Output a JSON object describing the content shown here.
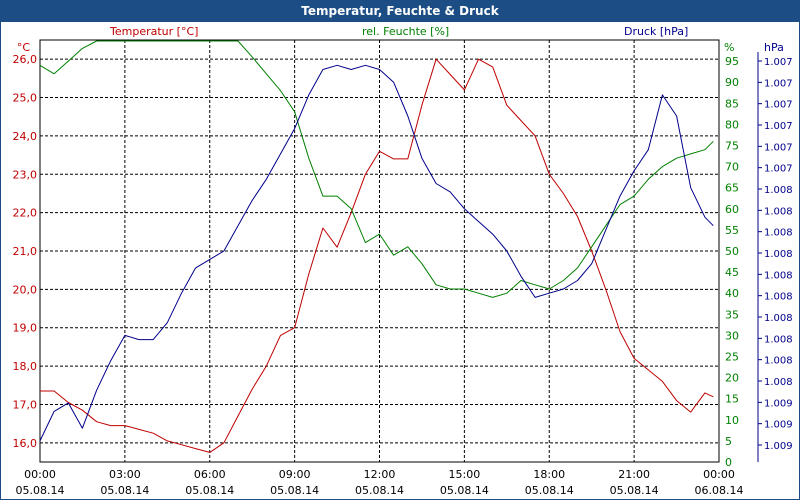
{
  "chart_data": {
    "type": "line",
    "title": "Temperatur, Feuchte & Druck",
    "x": [
      "00:00",
      "03:00",
      "06:00",
      "09:00",
      "12:00",
      "15:00",
      "18:00",
      "21:00",
      "00:00"
    ],
    "x_dates": [
      "05.08.14",
      "05.08.14",
      "05.08.14",
      "05.08.14",
      "05.08.14",
      "05.08.14",
      "05.08.14",
      "05.08.14",
      "06.08.14"
    ],
    "axes": {
      "temperature": {
        "unit": "°C",
        "range": [
          15.5,
          26.5
        ],
        "ticks": [
          "16,0",
          "17,0",
          "18,0",
          "19,0",
          "20,0",
          "21,0",
          "22,0",
          "23,0",
          "24,0",
          "25,0",
          "26,0"
        ],
        "color": "#c00000"
      },
      "humidity": {
        "unit": "%",
        "range": [
          0,
          100
        ],
        "ticks": [
          "0",
          "5",
          "10",
          "15",
          "20",
          "25",
          "30",
          "35",
          "40",
          "45",
          "50",
          "55",
          "60",
          "65",
          "70",
          "75",
          "80",
          "85",
          "90",
          "95"
        ],
        "color": "#008000"
      },
      "pressure": {
        "unit": "hPa",
        "ticks": [
          "1.007",
          "1.007",
          "1.007",
          "1.007",
          "1.007",
          "1.007",
          "1.008",
          "1.008",
          "1.008",
          "1.008",
          "1.008",
          "1.008",
          "1.008",
          "1.008",
          "1.008",
          "1.008",
          "1.009",
          "1.009",
          "1.009"
        ],
        "color": "#00008b"
      }
    },
    "grid": true,
    "series": [
      {
        "name": "Temperatur [°C]",
        "color": "#c00000",
        "values": [
          [
            0,
            17.35
          ],
          [
            0.5,
            17.35
          ],
          [
            1,
            17.05
          ],
          [
            1.5,
            16.85
          ],
          [
            2,
            16.55
          ],
          [
            2.5,
            16.45
          ],
          [
            3,
            16.45
          ],
          [
            3.5,
            16.35
          ],
          [
            4,
            16.25
          ],
          [
            4.5,
            16.05
          ],
          [
            5,
            15.95
          ],
          [
            5.5,
            15.85
          ],
          [
            6,
            15.75
          ],
          [
            6.5,
            16.0
          ],
          [
            7,
            16.7
          ],
          [
            7.5,
            17.4
          ],
          [
            8,
            18.0
          ],
          [
            8.5,
            18.8
          ],
          [
            9,
            19.0
          ],
          [
            9.5,
            20.4
          ],
          [
            10,
            21.6
          ],
          [
            10.5,
            21.1
          ],
          [
            11,
            22.0
          ],
          [
            11.5,
            23.0
          ],
          [
            12,
            23.6
          ],
          [
            12.5,
            23.4
          ],
          [
            13,
            23.4
          ],
          [
            13.5,
            24.8
          ],
          [
            14,
            26.0
          ],
          [
            14.5,
            25.6
          ],
          [
            15,
            25.2
          ],
          [
            15.5,
            26.0
          ],
          [
            16,
            25.8
          ],
          [
            16.5,
            24.8
          ],
          [
            17,
            24.4
          ],
          [
            17.5,
            24.0
          ],
          [
            18,
            23.0
          ],
          [
            18.5,
            22.5
          ],
          [
            19,
            21.9
          ],
          [
            19.5,
            21.0
          ],
          [
            20,
            20.0
          ],
          [
            20.5,
            18.9
          ],
          [
            21,
            18.2
          ],
          [
            21.5,
            17.9
          ],
          [
            22,
            17.6
          ],
          [
            22.5,
            17.1
          ],
          [
            23,
            16.8
          ],
          [
            23.5,
            17.3
          ],
          [
            23.8,
            17.2
          ]
        ]
      },
      {
        "name": "rel. Feuchte [%]",
        "color": "#008000",
        "values": [
          [
            0,
            94
          ],
          [
            0.5,
            92
          ],
          [
            1,
            95
          ],
          [
            1.5,
            98
          ],
          [
            2,
            100
          ],
          [
            3,
            100
          ],
          [
            4,
            100
          ],
          [
            5,
            100
          ],
          [
            6,
            100
          ],
          [
            7,
            100
          ],
          [
            7.5,
            96
          ],
          [
            8,
            92
          ],
          [
            8.5,
            88
          ],
          [
            9,
            83
          ],
          [
            9.5,
            72
          ],
          [
            10,
            63
          ],
          [
            10.5,
            63
          ],
          [
            11,
            60
          ],
          [
            11.5,
            52
          ],
          [
            12,
            54
          ],
          [
            12.5,
            49
          ],
          [
            13,
            51
          ],
          [
            13.5,
            47
          ],
          [
            14,
            42
          ],
          [
            14.5,
            41
          ],
          [
            15,
            41
          ],
          [
            15.5,
            40
          ],
          [
            16,
            39
          ],
          [
            16.5,
            40
          ],
          [
            17,
            43
          ],
          [
            17.5,
            42
          ],
          [
            18,
            41
          ],
          [
            18.5,
            43
          ],
          [
            19,
            46
          ],
          [
            19.5,
            51
          ],
          [
            20,
            56
          ],
          [
            20.5,
            61
          ],
          [
            21,
            63
          ],
          [
            21.5,
            67
          ],
          [
            22,
            70
          ],
          [
            22.5,
            72
          ],
          [
            23,
            73
          ],
          [
            23.5,
            74
          ],
          [
            23.8,
            76
          ]
        ]
      },
      {
        "name": "Druck [hPa]",
        "color": "#00008b",
        "values": [
          [
            0,
            5
          ],
          [
            0.5,
            12
          ],
          [
            1,
            14
          ],
          [
            1.5,
            8
          ],
          [
            2,
            17
          ],
          [
            2.5,
            24
          ],
          [
            3,
            30
          ],
          [
            3.5,
            29
          ],
          [
            4,
            29
          ],
          [
            4.5,
            33
          ],
          [
            5,
            40
          ],
          [
            5.5,
            46
          ],
          [
            6,
            48
          ],
          [
            6.5,
            50
          ],
          [
            7,
            56
          ],
          [
            7.5,
            62
          ],
          [
            8,
            67
          ],
          [
            8.5,
            73
          ],
          [
            9,
            79
          ],
          [
            9.5,
            87
          ],
          [
            10,
            93
          ],
          [
            10.5,
            94
          ],
          [
            11,
            93
          ],
          [
            11.5,
            94
          ],
          [
            12,
            93
          ],
          [
            12.5,
            90
          ],
          [
            13,
            82
          ],
          [
            13.5,
            72
          ],
          [
            14,
            66
          ],
          [
            14.5,
            64
          ],
          [
            15,
            60
          ],
          [
            15.5,
            57
          ],
          [
            16,
            54
          ],
          [
            16.5,
            50
          ],
          [
            17,
            44
          ],
          [
            17.5,
            39
          ],
          [
            18,
            40
          ],
          [
            18.5,
            41
          ],
          [
            19,
            43
          ],
          [
            19.5,
            47
          ],
          [
            20,
            55
          ],
          [
            20.5,
            63
          ],
          [
            21,
            69
          ],
          [
            21.5,
            74
          ],
          [
            22,
            87
          ],
          [
            22.5,
            82
          ],
          [
            23,
            65
          ],
          [
            23.5,
            58
          ],
          [
            23.8,
            56
          ]
        ]
      }
    ]
  }
}
